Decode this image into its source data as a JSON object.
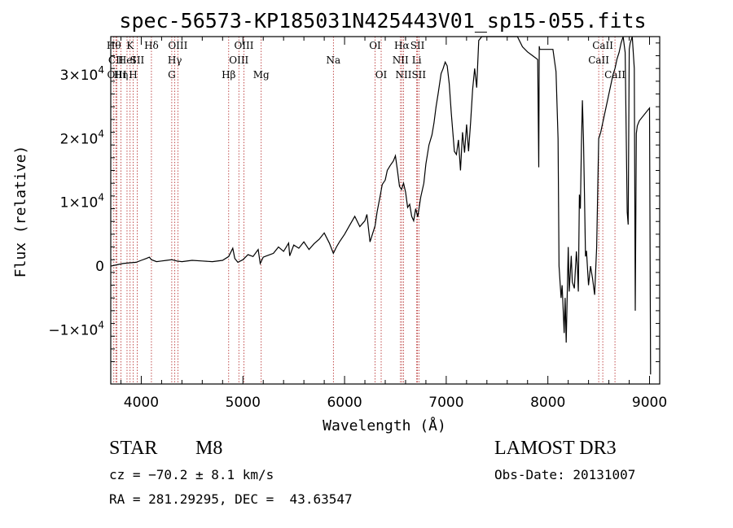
{
  "chart_data": {
    "type": "line",
    "title": "spec-56573-KP185031N425443V01_sp15-055.fits",
    "xlabel": "Wavelength (Å)",
    "ylabel": "Flux (relative)",
    "xlim": [
      3700,
      9100
    ],
    "ylim": [
      -18500,
      36000
    ],
    "x_ticks": [
      4000,
      5000,
      6000,
      7000,
      8000,
      9000
    ],
    "y_ticks": [
      {
        "value": -10000,
        "mantissa": "−1×10",
        "exp": "4"
      },
      {
        "value": 0,
        "mantissa": "0",
        "exp": ""
      },
      {
        "value": 10000,
        "mantissa": "1×10",
        "exp": "4"
      },
      {
        "value": 20000,
        "mantissa": "2×10",
        "exp": "4"
      },
      {
        "value": 30000,
        "mantissa": "3×10",
        "exp": "4"
      }
    ],
    "series": [
      {
        "x": [
          3700,
          3760,
          3820,
          3880,
          3950,
          4000,
          4050,
          4080,
          4100,
          4150,
          4200,
          4250,
          4300,
          4350,
          4400,
          4500,
          4600,
          4700,
          4800,
          4860,
          4900,
          4920,
          4950,
          5000,
          5050,
          5100,
          5150,
          5170,
          5200,
          5250,
          5300,
          5350,
          5400,
          5450,
          5460,
          5500,
          5550,
          5600,
          5650,
          5700,
          5750,
          5800,
          5850,
          5890,
          5920,
          5950,
          6000,
          6050,
          6100,
          6150,
          6200,
          6220,
          6250,
          6300,
          6320,
          6350,
          6370,
          6400,
          6420,
          6450,
          6480,
          6500,
          6520,
          6540,
          6560,
          6580,
          6600,
          6620,
          6640,
          6660,
          6680,
          6700,
          6720,
          6750,
          6780,
          6800,
          6830,
          6860,
          6880,
          6900,
          6920,
          6950,
          6970,
          6990,
          7010,
          7030,
          7050,
          7080,
          7100,
          7120,
          7140,
          7160,
          7180,
          7200,
          7220,
          7240,
          7260,
          7280,
          7300,
          7320,
          7350,
          7600,
          7650,
          7700,
          7750,
          7800,
          7850,
          7900,
          7910,
          7915,
          7920,
          8000,
          8050,
          8080,
          8100,
          8110,
          8130,
          8140,
          8160,
          8170,
          8180,
          8200,
          8210,
          8230,
          8240,
          8260,
          8280,
          8290,
          8300,
          8310,
          8320,
          8330,
          8340,
          8350,
          8360,
          8370,
          8380,
          8400,
          8420,
          8440,
          8460,
          8480,
          8500,
          8520,
          8540,
          8560,
          8580,
          8600,
          8620,
          8640,
          8660,
          8680,
          8700,
          8720,
          8740,
          8760,
          8780,
          8790,
          8800,
          8810,
          8830,
          8850,
          8860,
          8870,
          8880,
          8900,
          9000,
          9010
        ],
        "y": [
          0,
          200,
          400,
          500,
          600,
          900,
          1200,
          1400,
          1000,
          700,
          800,
          900,
          1000,
          800,
          700,
          900,
          800,
          700,
          900,
          1500,
          2800,
          1200,
          600,
          1000,
          1800,
          1500,
          2600,
          400,
          1400,
          1700,
          2000,
          3000,
          2300,
          3600,
          1600,
          3300,
          2800,
          3800,
          2600,
          3500,
          4200,
          5200,
          3600,
          2000,
          3000,
          3800,
          5000,
          6400,
          7800,
          6200,
          7100,
          8100,
          3800,
          6300,
          8500,
          11000,
          12800,
          13500,
          15000,
          15800,
          16500,
          17300,
          15000,
          12500,
          12000,
          13000,
          11600,
          9200,
          9700,
          7800,
          7100,
          9000,
          7700,
          10900,
          13000,
          16000,
          19000,
          20600,
          22500,
          25000,
          27000,
          30200,
          31000,
          32000,
          31400,
          28600,
          24000,
          18000,
          17500,
          19800,
          15000,
          21000,
          17800,
          22200,
          18000,
          22500,
          27700,
          31000,
          28000,
          35400,
          36000,
          36000,
          36000,
          36000,
          34400,
          33600,
          33000,
          32400,
          15500,
          34500,
          34000,
          34000,
          34000,
          30500,
          20000,
          0,
          -5000,
          -3000,
          -10500,
          -5000,
          -12000,
          3000,
          -4000,
          1600,
          -2500,
          -3500,
          2300,
          0,
          -4000,
          11200,
          9000,
          19100,
          26000,
          20000,
          11400,
          1500,
          2400,
          -3000,
          0,
          -2000,
          -4500,
          3000,
          20000,
          21000,
          22500,
          24000,
          25500,
          27000,
          28500,
          30000,
          31000,
          32500,
          33500,
          35000,
          36000,
          33500,
          8500,
          6500,
          34000,
          35000,
          36000,
          31000,
          -7000,
          20800,
          22000,
          22800,
          24800,
          -17000
        ]
      }
    ],
    "line_markers": [
      {
        "x": 3730,
        "label": "Hθ",
        "row": 1
      },
      {
        "x": 3750,
        "label": "CII",
        "row": 2
      },
      {
        "x": 3760,
        "label": "OIII",
        "row": 3
      },
      {
        "x": 3800,
        "label": "Hη",
        "row": 3
      },
      {
        "x": 3860,
        "label": "HeI",
        "row": 2
      },
      {
        "x": 3890,
        "label": "K",
        "row": 1
      },
      {
        "x": 3920,
        "label": "H",
        "row": 3
      },
      {
        "x": 3960,
        "label": "SII",
        "row": 2
      },
      {
        "x": 4100,
        "label": "Hδ",
        "row": 1
      },
      {
        "x": 4300,
        "label": "G",
        "row": 3
      },
      {
        "x": 4330,
        "label": "Hγ",
        "row": 2
      },
      {
        "x": 4360,
        "label": "OIII",
        "row": 1
      },
      {
        "x": 4860,
        "label": "Hβ",
        "row": 3
      },
      {
        "x": 4960,
        "label": "OIII",
        "row": 2
      },
      {
        "x": 5010,
        "label": "OIII",
        "row": 1
      },
      {
        "x": 5180,
        "label": "Mg",
        "row": 3
      },
      {
        "x": 5890,
        "label": "Na",
        "row": 2
      },
      {
        "x": 6300,
        "label": "OI",
        "row": 1
      },
      {
        "x": 6360,
        "label": "OI",
        "row": 3
      },
      {
        "x": 6550,
        "label": "NII",
        "row": 2
      },
      {
        "x": 6580,
        "label": "NII",
        "row": 3
      },
      {
        "x": 6563,
        "label": "Hα",
        "row": 1
      },
      {
        "x": 6710,
        "label": "Li",
        "row": 2
      },
      {
        "x": 6717,
        "label": "SII",
        "row": 1
      },
      {
        "x": 6731,
        "label": "SII",
        "row": 3
      },
      {
        "x": 8500,
        "label": "CaII",
        "row": 2
      },
      {
        "x": 8540,
        "label": "CaII",
        "row": 1
      },
      {
        "x": 8660,
        "label": "CaII",
        "row": 3
      }
    ]
  },
  "info": {
    "class": "STAR",
    "subclass": "M8",
    "survey": "LAMOST DR3",
    "cz": "cz = −70.2 ± 8.1 km/s",
    "obs_date": "Obs-Date: 20131007",
    "coords": "RA = 281.29295, DEC =  43.63547"
  }
}
